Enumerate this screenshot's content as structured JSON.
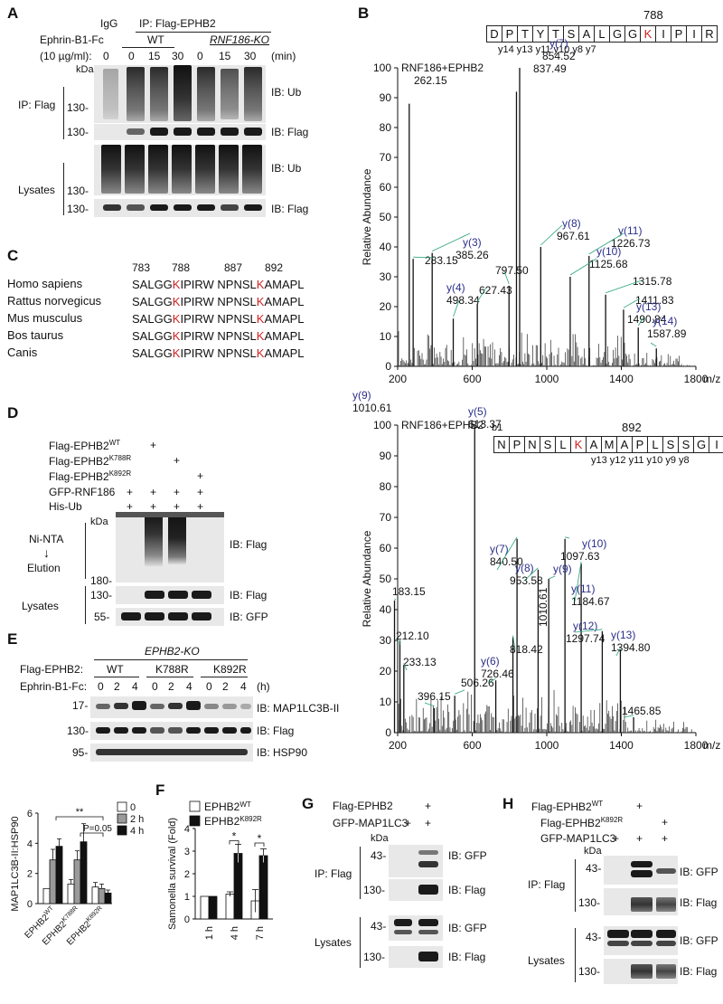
{
  "panels": {
    "A": {
      "label": "A",
      "igg": "IgG",
      "ip_header": "IP: Flag-EPHB2",
      "wt": "WT",
      "ko": "RNF186-KO",
      "treatment_line1": "Ephrin-B1-Fc",
      "treatment_line2": "(10 µg/ml):",
      "times": [
        "0",
        "0",
        "15",
        "30",
        "0",
        "15",
        "30"
      ],
      "time_unit": "(min)",
      "kda": "kDa",
      "ip_label": "IP: Flag",
      "lysates_label": "Lysates",
      "mw": [
        "130-",
        "130-",
        "130-",
        "130-"
      ],
      "ib": [
        "IB: Ub",
        "IB: Flag",
        "IB: Ub",
        "IB: Flag"
      ]
    },
    "B": {
      "label": "B",
      "top": {
        "title": "RNF186+EPHB2",
        "site": "788",
        "peptide": [
          "D",
          "P",
          "T",
          "Y",
          "T",
          "S",
          "A",
          "L",
          "G",
          "G",
          "K",
          "I",
          "P",
          "I",
          "R"
        ],
        "red_index": 10,
        "ions_text": "y14 y13   y11 y10   y8  y7",
        "ylabel": "Relative Abundance",
        "xlabel": "m/z",
        "yticks": [
          "0",
          "10",
          "20",
          "30",
          "40",
          "50",
          "60",
          "70",
          "80",
          "90",
          "100"
        ],
        "xticks": [
          "200",
          "600",
          "1000",
          "1400",
          "1800"
        ],
        "peaks": [
          {
            "mz": 262.15,
            "rel": 88,
            "label": "262.15"
          },
          {
            "mz": 283.15,
            "rel": 36,
            "label": "283.15"
          },
          {
            "mz": 385.26,
            "rel": 38,
            "label": "385.26",
            "ion": "y(3)"
          },
          {
            "mz": 498.34,
            "rel": 16,
            "label": "498.34",
            "ion": "y(4)"
          },
          {
            "mz": 627.43,
            "rel": 21,
            "label": "627.43"
          },
          {
            "mz": 797.5,
            "rel": 27,
            "label": "797.50"
          },
          {
            "mz": 837.49,
            "rel": 92,
            "label": "837.49"
          },
          {
            "mz": 854.52,
            "rel": 100,
            "label": "854.52",
            "ion": "y(7)"
          },
          {
            "mz": 967.61,
            "rel": 40,
            "label": "967.61",
            "ion": "y(8)"
          },
          {
            "mz": 1125.68,
            "rel": 30,
            "label": "1125.68",
            "ion": "y(10)"
          },
          {
            "mz": 1226.73,
            "rel": 37,
            "label": "1226.73",
            "ion": "y(11)"
          },
          {
            "mz": 1315.78,
            "rel": 24,
            "label": "1315.78"
          },
          {
            "mz": 1411.83,
            "rel": 19,
            "label": "1411.83"
          },
          {
            "mz": 1490.84,
            "rel": 13,
            "label": "1490.84",
            "ion": "y(13)"
          },
          {
            "mz": 1587.89,
            "rel": 6,
            "label": "1587.89",
            "ion": "y(14)"
          }
        ]
      },
      "bottom": {
        "title": "RNF186+EPHB2",
        "site": "892",
        "b_ion": "b1",
        "peptide": [
          "N",
          "P",
          "N",
          "S",
          "L",
          "K",
          "A",
          "M",
          "A",
          "P",
          "L",
          "S",
          "S",
          "G",
          "I"
        ],
        "red_index": 5,
        "ions_text": "y13 y12 y11 y10 y9 y8",
        "ylabel": "Relative Abundance",
        "xlabel": "m/z",
        "yticks": [
          "0",
          "10",
          "20",
          "30",
          "40",
          "50",
          "60",
          "70",
          "80",
          "90",
          "100"
        ],
        "xticks": [
          "200",
          "600",
          "1000",
          "1400",
          "1800"
        ],
        "peaks": [
          {
            "mz": 183.15,
            "rel": 43,
            "label": "183.15"
          },
          {
            "mz": 212.1,
            "rel": 30,
            "label": "212.10"
          },
          {
            "mz": 233.13,
            "rel": 22,
            "label": "233.13"
          },
          {
            "mz": 396.15,
            "rel": 8,
            "label": "396.15"
          },
          {
            "mz": 506.26,
            "rel": 12,
            "label": "506.26"
          },
          {
            "mz": 613.37,
            "rel": 100,
            "label": "613.37",
            "ion": "y(5)"
          },
          {
            "mz": 726.46,
            "rel": 17,
            "label": "726.46",
            "ion": "y(6)"
          },
          {
            "mz": 818.42,
            "rel": 31,
            "label": "818.42"
          },
          {
            "mz": 840.5,
            "rel": 63,
            "label": "840.50",
            "ion": "y(7)"
          },
          {
            "mz": 953.58,
            "rel": 53,
            "label": "953.58",
            "ion": "y(8)"
          },
          {
            "mz": 1010.61,
            "rel": 50,
            "label": "1010.61",
            "ion": "y(9)"
          },
          {
            "mz": 1097.63,
            "rel": 63,
            "label": "1097.63",
            "ion": "y(10)"
          },
          {
            "mz": 1184.67,
            "rel": 55,
            "label": "1184.67",
            "ion": "y(11)"
          },
          {
            "mz": 1297.74,
            "rel": 33,
            "label": "1297.74",
            "ion": "y(12)"
          },
          {
            "mz": 1394.8,
            "rel": 27,
            "label": "1394.80",
            "ion": "y(13)"
          },
          {
            "mz": 1465.85,
            "rel": 5,
            "label": "1465.85"
          }
        ]
      }
    },
    "C": {
      "label": "C",
      "positions": [
        "783",
        "788",
        "887",
        "892"
      ],
      "species": [
        "Homo sapiens",
        "Rattus norvegicus",
        "Mus musculus",
        "Bos taurus",
        "Canis"
      ],
      "seq1_a": "SALGG",
      "seq1_k": "K",
      "seq1_b": "IPIRW",
      "seq2_a": "NPNSL",
      "seq2_k": "K",
      "seq2_b": "AMAPL"
    },
    "D": {
      "label": "D",
      "rows": [
        "Flag-EPHB2WT",
        "Flag-EPHB2K788R",
        "Flag-EPHB2K892R",
        "GFP-RNF186",
        "His-Ub"
      ],
      "row_base": "Flag-EPHB2",
      "row_sup": [
        "WT",
        "K788R",
        "K892R"
      ],
      "gfp_rnf186": "GFP-RNF186",
      "his_ub": "His-Ub",
      "plus": "+",
      "kda": "kDa",
      "ni_nta": "Ni-NTA",
      "arrow": "↓",
      "elution": "Elution",
      "lysates": "Lysates",
      "mw": [
        "180-",
        "130-",
        "55-"
      ],
      "ib": [
        "IB: Flag",
        "IB: Flag",
        "IB: GFP"
      ]
    },
    "E": {
      "label": "E",
      "ko": "EPHB2-KO",
      "flag": "Flag-EPHB2:",
      "groups": [
        "WT",
        "K788R",
        "K892R"
      ],
      "ephrin": "Ephrin-B1-Fc:",
      "times": [
        "0",
        "2",
        "4",
        "0",
        "2",
        "4",
        "0",
        "2",
        "4"
      ],
      "unit": "(h)",
      "mw": [
        "17-",
        "130-",
        "95-"
      ],
      "ib": [
        "IB: MAP1LC3B-II",
        "IB: Flag",
        "IB: HSP90"
      ],
      "chart_data": {
        "type": "bar",
        "ylabel": "MAP1LC3B-II:HSP90",
        "categories": [
          "EPHB2WT",
          "EPHB2K788R",
          "EPHB2K892R"
        ],
        "cat_base": "EPHB2",
        "cat_sup": [
          "WT",
          "K788R",
          "K892R"
        ],
        "ylim": [
          0,
          6
        ],
        "yticks": [
          "0",
          "2",
          "4",
          "6"
        ],
        "series": [
          {
            "name": "0",
            "values": [
              1.0,
              1.3,
              1.1
            ],
            "errors": [
              0.0,
              0.3,
              0.3
            ],
            "color": "#ffffff"
          },
          {
            "name": "2 h",
            "values": [
              2.9,
              2.9,
              1.0
            ],
            "errors": [
              0.7,
              0.6,
              0.3
            ],
            "color": "#9a9a9a"
          },
          {
            "name": "4 h",
            "values": [
              3.8,
              4.1,
              0.7
            ],
            "errors": [
              0.5,
              1.2,
              0.2
            ],
            "color": "#111111"
          }
        ],
        "sig_star": "**",
        "sig_p": "P=0.05"
      }
    },
    "F": {
      "label": "F",
      "chart_data": {
        "type": "bar",
        "ylabel": "Samonella survival (Fold)",
        "categories": [
          "1 h",
          "4 h",
          "7 h"
        ],
        "ylim": [
          0,
          4
        ],
        "yticks": [
          "0",
          "1",
          "2",
          "3",
          "4"
        ],
        "series": [
          {
            "name": "EPHB2WT",
            "base": "EPHB2",
            "sup": "WT",
            "values": [
              1.0,
              1.1,
              0.8
            ],
            "errors": [
              0.0,
              0.1,
              0.5
            ],
            "color": "#ffffff"
          },
          {
            "name": "EPHB2K892R",
            "base": "EPHB2",
            "sup": "K892R",
            "values": [
              1.0,
              2.9,
              2.8
            ],
            "errors": [
              0.0,
              0.4,
              0.3
            ],
            "color": "#111111"
          }
        ],
        "sig": "*"
      }
    },
    "G": {
      "label": "G",
      "rows": [
        "Flag-EPHB2",
        "GFP-MAP1LC3"
      ],
      "plus": "+",
      "kda": "kDa",
      "ip": "IP: Flag",
      "lysates": "Lysates",
      "mw": [
        "43-",
        "130-",
        "43-",
        "130-"
      ],
      "ib": [
        "IB: GFP",
        "IB: Flag",
        "IB: GFP",
        "IB: Flag"
      ]
    },
    "H": {
      "label": "H",
      "row_base": "Flag-EPHB2",
      "row_sup": [
        "WT",
        "K892R"
      ],
      "gfp": "GFP-MAP1LC3",
      "plus": "+",
      "kda": "kDa",
      "ip": "IP: Flag",
      "lysates": "Lysates",
      "mw": [
        "43-",
        "130-",
        "43-",
        "130-"
      ],
      "ib": [
        "IB: GFP",
        "IB: Flag",
        "IB: GFP",
        "IB: Flag"
      ]
    }
  }
}
